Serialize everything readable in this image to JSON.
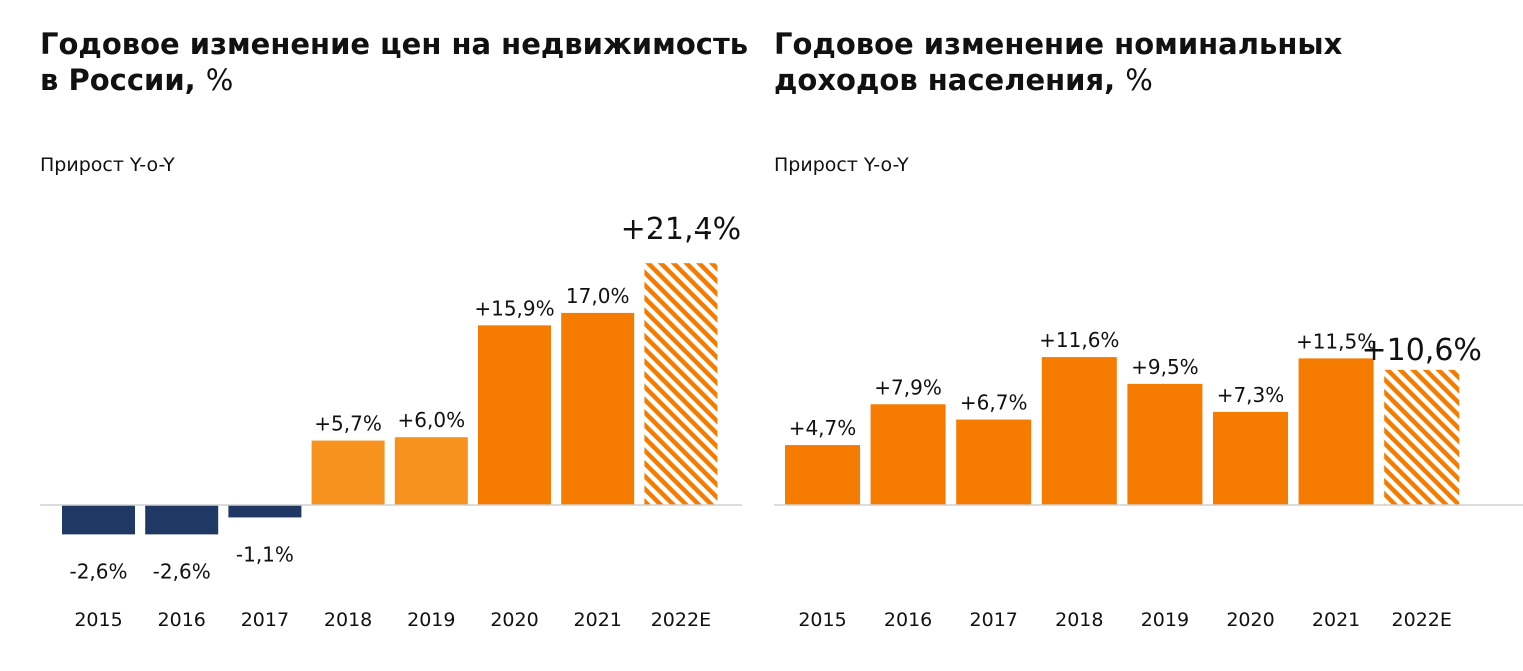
{
  "chart_data": [
    {
      "type": "bar",
      "title": "Годовое изменение цен на недвижимость в России",
      "title_line1": "Годовое изменение цен на недвижимость",
      "title_line2": "в России,",
      "title_unit": "%",
      "subtitle": "Прирост Y-o-Y",
      "categories": [
        "2015",
        "2016",
        "2017",
        "2018",
        "2019",
        "2020",
        "2021",
        "2022E"
      ],
      "values": [
        -2.6,
        -2.6,
        -1.1,
        5.7,
        6.0,
        15.9,
        17.0,
        21.4
      ],
      "labels": [
        "-2,6%",
        "-2,6%",
        "-1,1%",
        "+5,7%",
        "+6,0%",
        "+15,9%",
        "17,0%",
        "+21,4%"
      ],
      "estimate": [
        false,
        false,
        false,
        false,
        false,
        false,
        false,
        true
      ],
      "colors": {
        "negative": "#1f3864",
        "positive_light": "#f7921e",
        "positive": "#f57c00"
      },
      "ylim": [
        -4.5,
        22.5
      ],
      "grid": false,
      "legend": "none"
    },
    {
      "type": "bar",
      "title": "Годовое изменение номинальных доходов населения",
      "title_line1": "Годовое изменение номинальных",
      "title_line2": "доходов населения,",
      "title_unit": "%",
      "subtitle": "Прирост Y-o-Y",
      "categories": [
        "2015",
        "2016",
        "2017",
        "2018",
        "2019",
        "2020",
        "2021",
        "2022E"
      ],
      "values": [
        4.7,
        7.9,
        6.7,
        11.6,
        9.5,
        7.3,
        11.5,
        10.6
      ],
      "labels": [
        "+4,7%",
        "+7,9%",
        "+6,7%",
        "+11,6%",
        "+9,5%",
        "+7,3%",
        "+11,5%",
        "+10,6%"
      ],
      "estimate": [
        false,
        false,
        false,
        false,
        false,
        false,
        false,
        true
      ],
      "colors": {
        "positive": "#f57c00"
      },
      "ylim": [
        0,
        16.5
      ],
      "grid": false,
      "legend": "none"
    }
  ]
}
